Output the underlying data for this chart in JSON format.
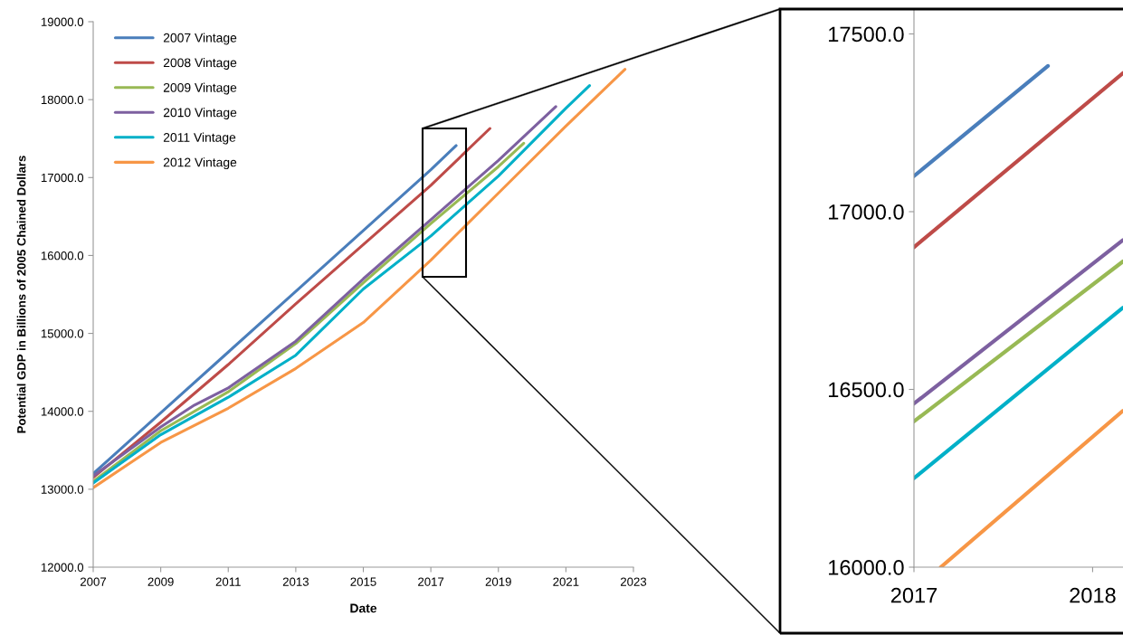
{
  "chart_data": [
    {
      "type": "line",
      "xlabel": "Date",
      "ylabel": "Potential GDP in Billions of 2005 Chained Dollars",
      "xlim": [
        2007,
        2023
      ],
      "xticks": [
        2007,
        2009,
        2011,
        2013,
        2015,
        2017,
        2019,
        2021,
        2023
      ],
      "ylim": [
        12000,
        19000
      ],
      "yticks": [
        {
          "value": 12000,
          "label": "12000.0"
        },
        {
          "value": 13000,
          "label": "13000.0"
        },
        {
          "value": 14000,
          "label": "14000.0"
        },
        {
          "value": 15000,
          "label": "15000.0"
        },
        {
          "value": 16000,
          "label": "16000.0"
        },
        {
          "value": 17000,
          "label": "17000.0"
        },
        {
          "value": 18000,
          "label": "18000.0"
        },
        {
          "value": 19000,
          "label": "19000.0"
        }
      ],
      "grid": false,
      "legend": "top left",
      "series": [
        {
          "name": "2007 Vintage",
          "color": "#4a7ebb",
          "x": [
            2007,
            2009,
            2011,
            2013,
            2015,
            2017,
            2017.75
          ],
          "values": [
            13200,
            13980,
            14760,
            15540,
            16320,
            17100,
            17410
          ]
        },
        {
          "name": "2008 Vintage",
          "color": "#be4b48",
          "x": [
            2007,
            2009,
            2011,
            2013,
            2015,
            2017,
            2018.75
          ],
          "values": [
            13150,
            13860,
            14600,
            15380,
            16140,
            16900,
            17630
          ]
        },
        {
          "name": "2009 Vintage",
          "color": "#98b954",
          "x": [
            2007,
            2009,
            2011,
            2013,
            2015,
            2017,
            2019,
            2019.75
          ],
          "values": [
            13100,
            13750,
            14250,
            14870,
            15650,
            16410,
            17140,
            17440
          ]
        },
        {
          "name": "2010 Vintage",
          "color": "#7d60a0",
          "x": [
            2007,
            2009,
            2010,
            2011,
            2013,
            2015,
            2017,
            2019,
            2020.7
          ],
          "values": [
            13170,
            13800,
            14080,
            14300,
            14900,
            15700,
            16460,
            17220,
            17910
          ]
        },
        {
          "name": "2011 Vintage",
          "color": "#00b0c8",
          "x": [
            2007,
            2009,
            2011,
            2013,
            2015,
            2017,
            2019,
            2021,
            2021.7
          ],
          "values": [
            13080,
            13700,
            14180,
            14720,
            15570,
            16250,
            17020,
            17890,
            18180
          ]
        },
        {
          "name": "2012 Vintage",
          "color": "#f79646",
          "x": [
            2007,
            2009,
            2011,
            2013,
            2015,
            2017,
            2019,
            2021,
            2022.75
          ],
          "values": [
            13020,
            13600,
            14040,
            14550,
            15140,
            15940,
            16800,
            17660,
            18390
          ]
        }
      ]
    },
    {
      "type": "line",
      "xlim": [
        2017,
        2018.17
      ],
      "xticks": [
        2017,
        2018
      ],
      "ylim": [
        16000,
        17570
      ],
      "yticks": [
        {
          "value": 16000,
          "label": "16000.0"
        },
        {
          "value": 16500,
          "label": "16500.0"
        },
        {
          "value": 17000,
          "label": "17000.0"
        },
        {
          "value": 17500,
          "label": "17500.0"
        }
      ],
      "grid": false,
      "legend": false,
      "series": [
        {
          "color": "#4a7ebb",
          "x": [
            2017,
            2017.75
          ],
          "values": [
            17100,
            17410
          ]
        },
        {
          "color": "#be4b48",
          "x": [
            2017,
            2018.17
          ],
          "values": [
            16900,
            17390
          ]
        },
        {
          "color": "#98b954",
          "x": [
            2017,
            2018.17
          ],
          "values": [
            16410,
            16860
          ]
        },
        {
          "color": "#7d60a0",
          "x": [
            2017,
            2018.17
          ],
          "values": [
            16460,
            16920
          ]
        },
        {
          "color": "#00b0c8",
          "x": [
            2017,
            2018.17
          ],
          "values": [
            16250,
            16730
          ]
        },
        {
          "color": "#f79646",
          "x": [
            2017.15,
            2018.17
          ],
          "values": [
            16000,
            16440
          ]
        }
      ]
    }
  ]
}
